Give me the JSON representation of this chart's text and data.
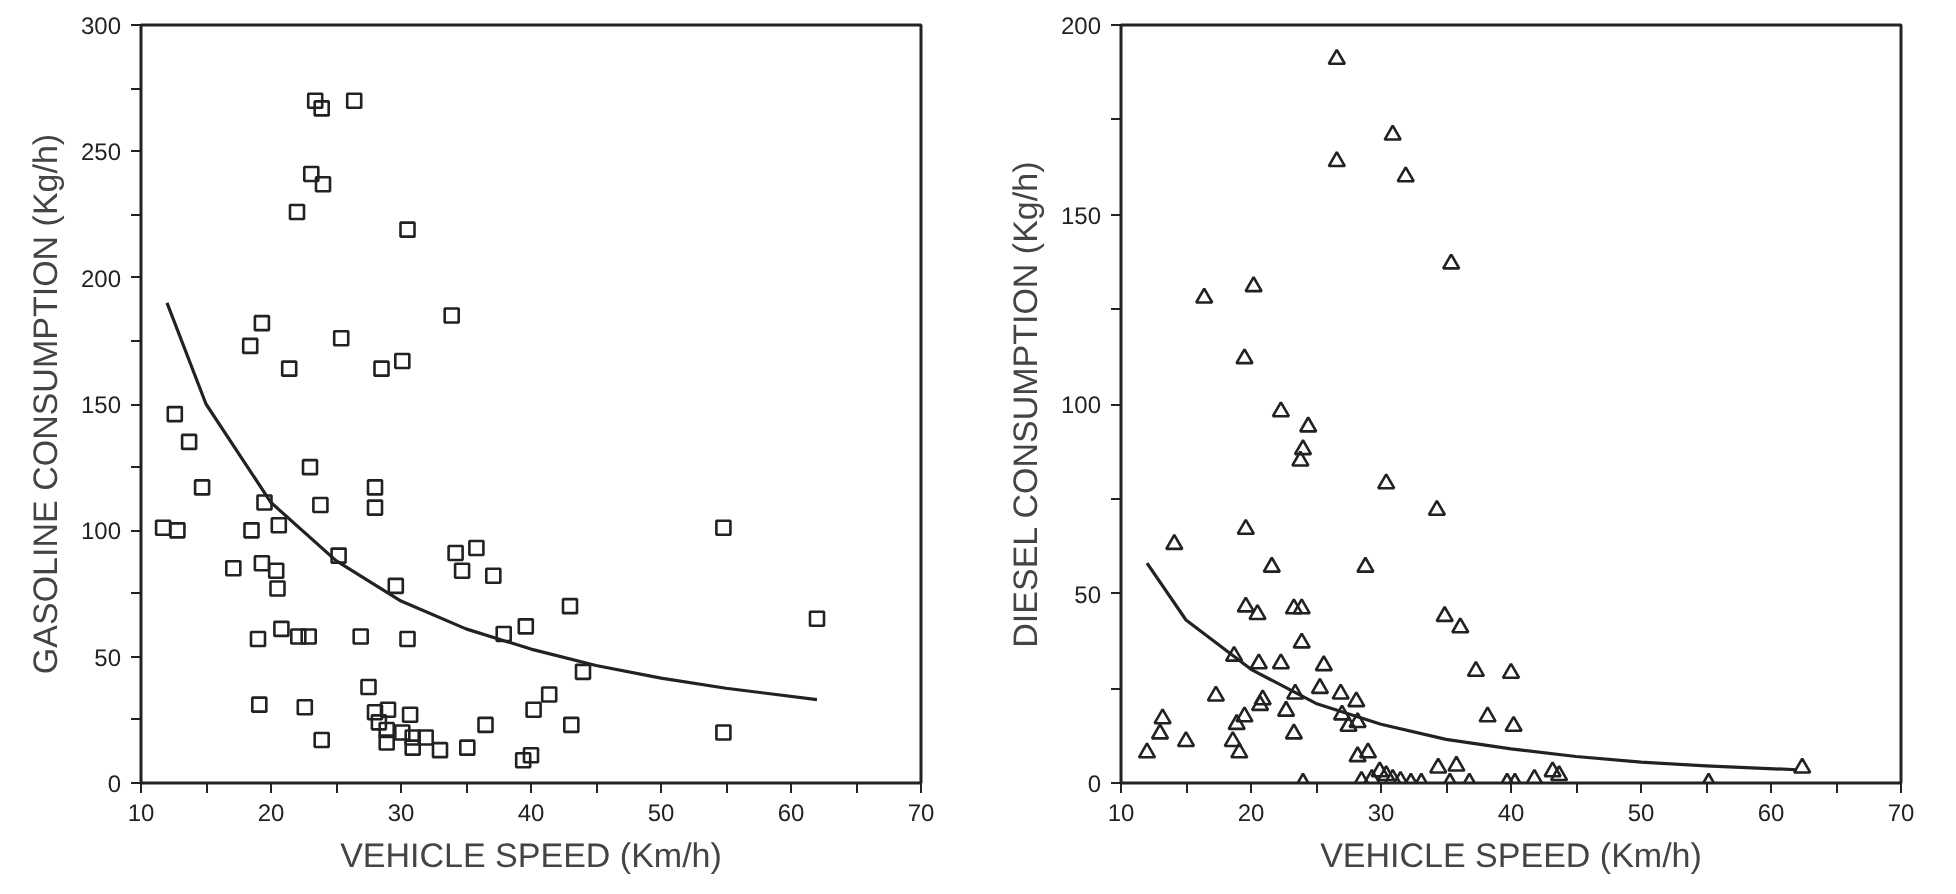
{
  "chart_data": [
    {
      "type": "scatter",
      "xlabel": "VEHICLE SPEED (Km/h)",
      "ylabel": "GASOLINE CONSUMPTION (Kg/h)",
      "xlim": [
        10,
        70
      ],
      "ylim": [
        0,
        300
      ],
      "xticks": [
        10,
        {
          "value": 15,
          "label": null
        },
        20,
        {
          "value": 25,
          "label": null
        },
        30,
        {
          "value": 35,
          "label": null
        },
        40,
        {
          "value": 45,
          "label": null
        },
        50,
        {
          "value": 55,
          "label": null
        },
        60,
        {
          "value": 65,
          "label": null
        },
        70
      ],
      "yticks": [
        0,
        {
          "value": 25,
          "label": null
        },
        50,
        {
          "value": 75,
          "label": null
        },
        100,
        {
          "value": 125,
          "label": null
        },
        150,
        {
          "value": 175,
          "label": null
        },
        200,
        {
          "value": 225,
          "label": null
        },
        250,
        {
          "value": 275,
          "label": null
        },
        300
      ],
      "series": [
        {
          "marker": "square",
          "color": "#222222",
          "x": [
            23.4,
            23.9,
            26.4,
            23.1,
            24.0,
            22.0,
            30.5,
            19.3,
            18.4,
            25.4,
            21.4,
            28.5,
            30.1,
            33.9,
            12.6,
            13.7,
            14.7,
            19.5,
            23.0,
            23.8,
            28.0,
            28.0,
            11.7,
            12.8,
            18.5,
            20.6,
            17.1,
            19.3,
            20.4,
            20.5,
            25.2,
            29.6,
            34.2,
            35.8,
            34.7,
            37.1,
            54.8,
            19.0,
            20.8,
            22.1,
            22.9,
            26.9,
            30.5,
            37.9,
            39.6,
            43.0,
            62.0,
            44.0,
            27.5,
            19.1,
            22.6,
            28.0,
            29.0,
            30.7,
            41.4,
            40.2,
            28.3,
            28.9,
            30.1,
            30.9,
            31.9,
            30.9,
            33.0,
            28.9,
            23.9,
            35.1,
            36.5,
            43.1,
            54.8,
            39.4,
            40.0
          ],
          "values": [
            270,
            267,
            270,
            241,
            237,
            226,
            219,
            182,
            173,
            176,
            164,
            164,
            167,
            185,
            146,
            135,
            117,
            111,
            125,
            110,
            117,
            109,
            101,
            100,
            100,
            102,
            85,
            87,
            84,
            77,
            90,
            78,
            91,
            93,
            84,
            82,
            101,
            57,
            61,
            58,
            58,
            58,
            57,
            59,
            62,
            70,
            65,
            44,
            38,
            31,
            30,
            28,
            29,
            27,
            35,
            29,
            24,
            21,
            20,
            18,
            18,
            14,
            13,
            16,
            17,
            14,
            23,
            23,
            20,
            9,
            11
          ]
        },
        {
          "type": "line",
          "line_style": "solid",
          "marker": "none",
          "color": "#222222",
          "x": [
            12,
            15,
            20,
            25,
            30,
            35,
            40,
            45,
            50,
            55,
            62
          ],
          "values": [
            190,
            150,
            111,
            88,
            72,
            61,
            53,
            46.5,
            41.5,
            37.5,
            33
          ]
        }
      ]
    },
    {
      "type": "scatter",
      "xlabel": "VEHICLE SPEED (Km/h)",
      "ylabel": "DIESEL CONSUMPTION (Kg/h)",
      "xlim": [
        10,
        70
      ],
      "ylim": [
        0,
        200
      ],
      "xticks": [
        10,
        {
          "value": 15,
          "label": null
        },
        20,
        {
          "value": 25,
          "label": null
        },
        30,
        {
          "value": 35,
          "label": null
        },
        40,
        {
          "value": 45,
          "label": null
        },
        50,
        {
          "value": 55,
          "label": null
        },
        60,
        {
          "value": 65,
          "label": null
        },
        70
      ],
      "yticks": [
        0,
        {
          "value": 25,
          "label": null
        },
        50,
        {
          "value": 75,
          "label": null
        },
        100,
        {
          "value": 125,
          "label": null
        },
        150,
        {
          "value": 175,
          "label": null
        },
        200
      ],
      "series": [
        {
          "marker": "triangle",
          "color": "#222222",
          "x": [
            26.6,
            30.9,
            26.6,
            31.9,
            35.4,
            16.4,
            20.2,
            19.5,
            22.3,
            24.4,
            24.0,
            23.8,
            30.4,
            34.3,
            14.1,
            19.6,
            21.6,
            28.8,
            19.6,
            20.5,
            23.3,
            23.9,
            34.9,
            36.1,
            23.9,
            18.7,
            20.6,
            22.3,
            25.6,
            37.3,
            40.0,
            25.3,
            17.3,
            26.9,
            23.4,
            28.1,
            20.9,
            20.7,
            22.7,
            27.0,
            19.5,
            13.2,
            18.9,
            27.5,
            28.2,
            38.2,
            40.2,
            13.0,
            23.3,
            15.0,
            18.6,
            19.1,
            12.0,
            28.2,
            29.0,
            34.4,
            35.8,
            43.2,
            43.7,
            62.4,
            24.0,
            28.5,
            29.3,
            29.9,
            30.4,
            30.9,
            31.5,
            32.3,
            33.1,
            35.3,
            36.8,
            39.7,
            40.3,
            41.8,
            55.2
          ],
          "values": [
            191,
            171,
            164,
            160,
            137,
            128,
            131,
            112,
            98,
            94,
            88,
            85,
            79,
            72,
            63,
            67,
            57,
            57,
            46.5,
            44.5,
            46,
            46,
            44,
            41,
            37,
            33.5,
            31.5,
            31.5,
            31,
            29.5,
            29,
            25,
            23,
            23.5,
            23.5,
            21.5,
            22,
            20.5,
            19,
            18,
            17.5,
            17,
            15.5,
            15,
            16,
            17.5,
            15,
            13,
            13,
            11,
            11,
            8,
            8,
            7,
            8,
            4,
            4.5,
            3,
            2,
            4,
            0,
            0.5,
            1,
            3,
            2,
            1,
            0.5,
            0,
            0,
            0,
            0,
            0,
            0,
            1,
            0
          ]
        },
        {
          "type": "line",
          "line_style": "solid",
          "marker": "none",
          "color": "#222222",
          "x": [
            12,
            15,
            20,
            25,
            30,
            35,
            40,
            45,
            50,
            55,
            62
          ],
          "values": [
            58,
            43,
            30,
            21,
            15.5,
            11.5,
            9,
            7,
            5.5,
            4.5,
            3.5
          ]
        }
      ]
    }
  ]
}
